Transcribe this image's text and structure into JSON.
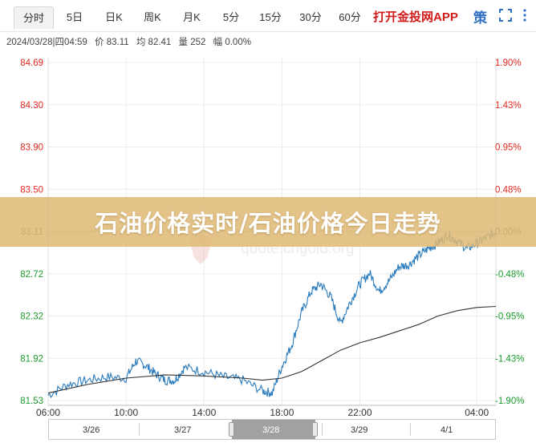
{
  "tabs": [
    {
      "label": "分时",
      "active": true
    },
    {
      "label": "5日",
      "active": false
    },
    {
      "label": "日K",
      "active": false
    },
    {
      "label": "周K",
      "active": false
    },
    {
      "label": "月K",
      "active": false
    },
    {
      "label": "5分",
      "active": false
    },
    {
      "label": "15分",
      "active": false
    },
    {
      "label": "30分",
      "active": false
    },
    {
      "label": "60分",
      "active": false
    }
  ],
  "app_link": "打开金投网APP",
  "strategy_icon": "策",
  "info": {
    "datetime": "2024/03/28|四04:59",
    "price": "价 83.11",
    "avg": "均 82.41",
    "volume": "量 252",
    "change": "幅 0.00%"
  },
  "watermark": "quote.cngold.org",
  "banner_title": "石油价格实时/石油价格今日走势",
  "colors": {
    "price_line": "#2a7bbd",
    "avg_line": "#333333",
    "up": "#e0281f",
    "down": "#1a9a2c",
    "banner": "#deb873"
  },
  "chart_data": {
    "type": "line",
    "x_ticks": [
      "06:00",
      "10:00",
      "14:00",
      "18:00",
      "22:00",
      "04:00"
    ],
    "y_left_ticks": [
      "84.69",
      "84.30",
      "83.90",
      "83.50",
      "83.11",
      "82.72",
      "82.32",
      "81.92",
      "81.53"
    ],
    "y_right_ticks": [
      "1.90%",
      "1.43%",
      "0.95%",
      "0.48%",
      "0.00%",
      "-0.48%",
      "-0.95%",
      "-1.43%",
      "-1.90%"
    ],
    "ylim": [
      81.53,
      84.69
    ],
    "xlim_hours": [
      6,
      28.98
    ],
    "reference_price": 83.11,
    "series": [
      {
        "x": [
          6.0,
          7.0,
          8.0,
          9.0,
          10.0,
          10.5,
          11.0,
          11.5,
          12.0,
          12.5,
          13.0,
          14.0,
          15.0,
          16.0,
          17.0,
          17.5,
          18.0,
          18.5,
          19.0,
          19.5,
          20.0,
          20.5,
          21.0,
          21.5,
          22.0,
          22.5,
          23.0,
          23.5,
          24.0,
          24.5,
          25.0,
          25.5,
          26.0,
          26.5,
          27.0,
          27.5,
          28.0,
          28.5,
          28.98
        ],
        "values": [
          81.58,
          81.68,
          81.72,
          81.75,
          81.74,
          81.9,
          81.86,
          81.78,
          81.72,
          81.72,
          81.84,
          81.8,
          81.75,
          81.72,
          81.62,
          81.6,
          81.85,
          82.05,
          82.35,
          82.55,
          82.62,
          82.5,
          82.25,
          82.45,
          82.62,
          82.72,
          82.55,
          82.65,
          82.78,
          82.8,
          82.88,
          82.95,
          83.0,
          83.08,
          83.02,
          82.95,
          83.0,
          83.05,
          83.11
        ]
      },
      {
        "x": [
          6.0,
          8.0,
          10.0,
          12.0,
          14.0,
          16.0,
          17.0,
          18.0,
          19.0,
          20.0,
          21.0,
          22.0,
          23.0,
          24.0,
          25.0,
          26.0,
          27.0,
          28.0,
          28.98
        ],
        "values": [
          81.6,
          81.68,
          81.74,
          81.77,
          81.76,
          81.74,
          81.72,
          81.74,
          81.8,
          81.9,
          82.0,
          82.07,
          82.12,
          82.18,
          82.24,
          82.32,
          82.37,
          82.4,
          82.41
        ]
      }
    ],
    "navigator": {
      "dates": [
        "3/26",
        "3/27",
        "3/28",
        "3/29",
        "4/1"
      ],
      "selected": "3/28"
    }
  }
}
